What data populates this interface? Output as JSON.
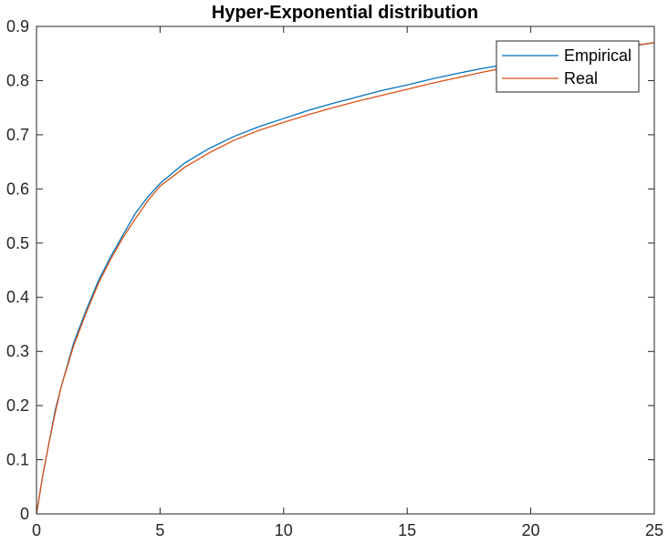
{
  "chart_data": {
    "type": "line",
    "title": "Hyper-Exponential distribution",
    "xlabel": "",
    "ylabel": "",
    "xlim": [
      0,
      25
    ],
    "ylim": [
      0,
      0.9
    ],
    "xticks": [
      0,
      5,
      10,
      15,
      20,
      25
    ],
    "yticks": [
      0,
      0.1,
      0.2,
      0.3,
      0.4,
      0.5,
      0.6,
      0.7,
      0.8,
      0.9
    ],
    "xtick_labels": [
      "0",
      "5",
      "10",
      "15",
      "20",
      "25"
    ],
    "ytick_labels": [
      "0",
      "0.1",
      "0.2",
      "0.3",
      "0.4",
      "0.5",
      "0.6",
      "0.7",
      "0.8",
      "0.9"
    ],
    "grid": false,
    "legend_position": "top-right",
    "series": [
      {
        "name": "Empirical",
        "color": "#0072BD",
        "x": [
          0,
          0.25,
          0.5,
          0.75,
          1,
          1.5,
          2,
          2.5,
          3,
          3.5,
          4,
          4.5,
          5,
          6,
          7,
          8,
          9,
          10,
          11,
          12,
          13,
          14,
          15,
          16,
          17,
          18,
          19,
          20,
          21,
          22,
          23,
          24,
          25
        ],
        "y": [
          0,
          0.07,
          0.13,
          0.19,
          0.235,
          0.315,
          0.375,
          0.43,
          0.475,
          0.515,
          0.555,
          0.585,
          0.61,
          0.648,
          0.675,
          0.697,
          0.715,
          0.73,
          0.745,
          0.758,
          0.77,
          0.782,
          0.792,
          0.803,
          0.813,
          0.822,
          0.83,
          0.837,
          0.843,
          0.85,
          0.856,
          0.863,
          0.87
        ]
      },
      {
        "name": "Real",
        "color": "#D95319",
        "x": [
          0,
          0.25,
          0.5,
          0.75,
          1,
          1.5,
          2,
          2.5,
          3,
          3.5,
          4,
          4.5,
          5,
          6,
          7,
          8,
          9,
          10,
          11,
          12,
          13,
          14,
          15,
          16,
          17,
          18,
          19,
          20,
          21,
          22,
          23,
          24,
          25
        ],
        "y": [
          0,
          0.07,
          0.13,
          0.185,
          0.235,
          0.31,
          0.37,
          0.425,
          0.47,
          0.51,
          0.545,
          0.578,
          0.605,
          0.64,
          0.667,
          0.69,
          0.708,
          0.723,
          0.737,
          0.75,
          0.762,
          0.773,
          0.784,
          0.795,
          0.805,
          0.815,
          0.824,
          0.833,
          0.841,
          0.849,
          0.857,
          0.864,
          0.87
        ]
      }
    ]
  }
}
